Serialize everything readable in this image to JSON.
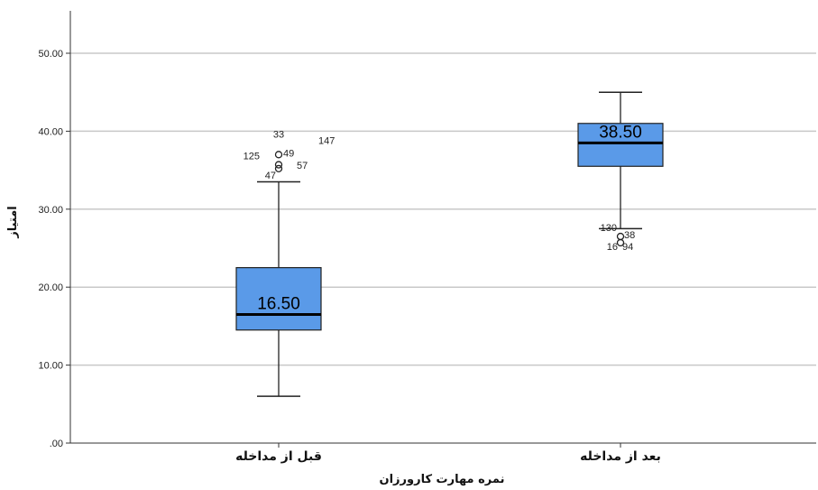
{
  "chart_data": {
    "type": "box",
    "xlabel": "نمره مهارت کارورزان",
    "ylabel": "امتیاز",
    "ylim": [
      0,
      55
    ],
    "yticks": [
      0,
      10,
      20,
      30,
      40,
      50
    ],
    "ytick_labels": [
      ".00",
      "10.00",
      "20.00",
      "30.00",
      "40.00",
      "50.00"
    ],
    "grid": true,
    "box_color": "#5a9ae8",
    "categories": [
      "قبل از مداخله",
      "بعد از مداخله"
    ],
    "boxes": [
      {
        "category": "قبل از مداخله",
        "whisker_low": 6.0,
        "q1": 14.5,
        "median": 16.5,
        "q3": 22.5,
        "whisker_high": 33.5,
        "median_label": "16.50",
        "outliers": [
          {
            "value": 37.0,
            "labels": [
              "33",
              "147"
            ]
          },
          {
            "value": 35.7,
            "labels": [
              "125",
              "49"
            ]
          },
          {
            "value": 35.2,
            "labels": [
              "57",
              "47"
            ]
          }
        ]
      },
      {
        "category": "بعد از مداخله",
        "whisker_low": 27.5,
        "q1": 35.5,
        "median": 38.5,
        "q3": 41.0,
        "whisker_high": 45.0,
        "median_label": "38.50",
        "outliers": [
          {
            "value": 26.5,
            "labels": [
              "130",
              "38"
            ]
          },
          {
            "value": 25.7,
            "labels": [
              "16",
              "94"
            ]
          }
        ]
      }
    ]
  }
}
